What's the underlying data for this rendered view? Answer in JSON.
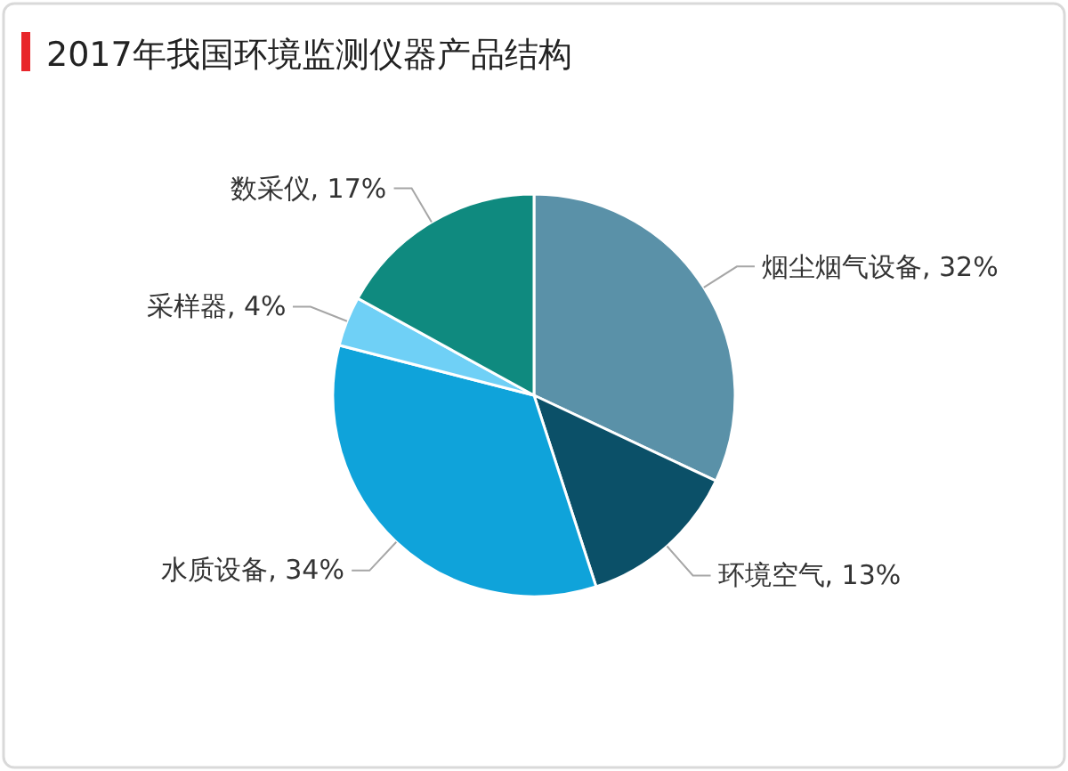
{
  "chart_data": {
    "type": "pie",
    "title": "2017年我国环境监测仪器产品结构",
    "categories": [
      "烟尘烟气设备",
      "环境空气",
      "水质设备",
      "采样器",
      "数采仪"
    ],
    "values": [
      32,
      13,
      34,
      4,
      17
    ],
    "value_labels": [
      "32%",
      "13%",
      "34%",
      "4%",
      "17%"
    ],
    "colors": [
      "#5a91a8",
      "#0b5068",
      "#0fa3da",
      "#6fd0f6",
      "#0f8a7f"
    ]
  }
}
